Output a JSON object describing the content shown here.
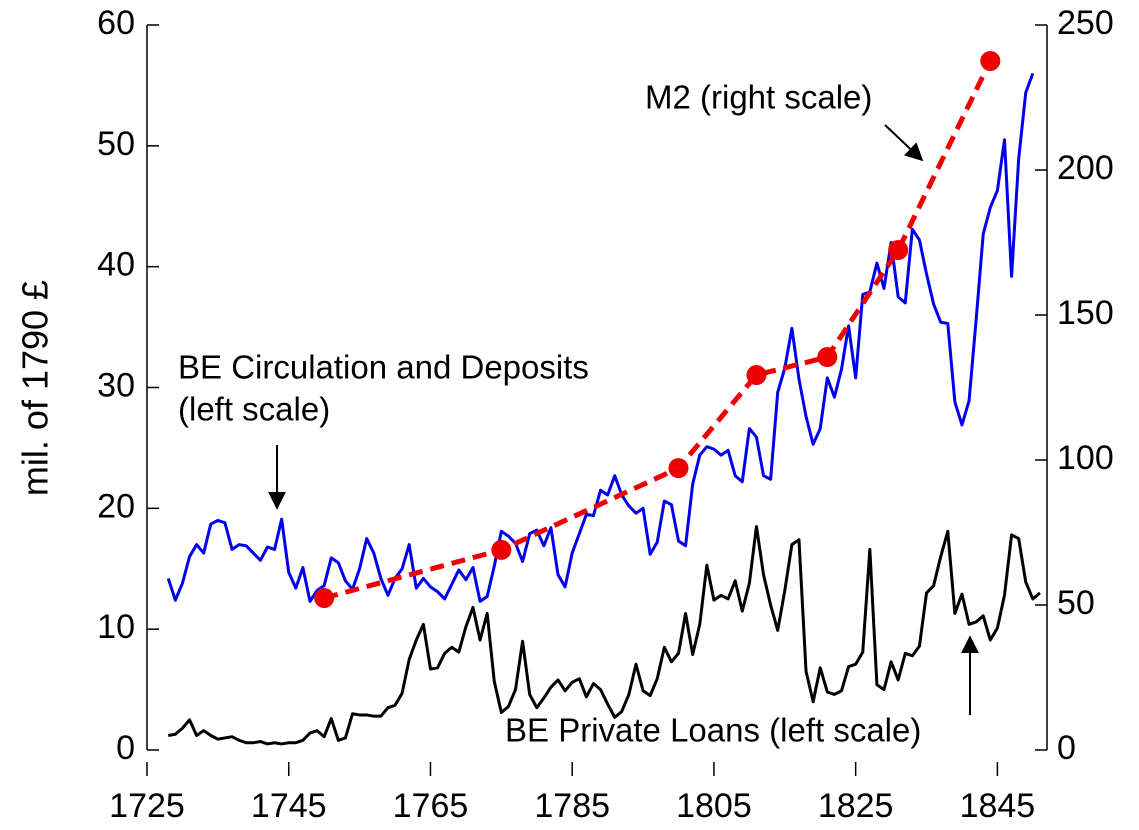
{
  "chart_data": {
    "type": "line",
    "y_axis_label": "mil. of 1790 £",
    "annotations": [
      "M2 (right scale)",
      "BE Circulation and Deposits",
      "(left scale)",
      "BE Private Loans (left scale)"
    ],
    "xlim": [
      1725,
      1852
    ],
    "xticks": [
      1725,
      1745,
      1765,
      1785,
      1805,
      1825,
      1845
    ],
    "ylim": [
      0,
      60
    ],
    "yticks": [
      0,
      10,
      20,
      30,
      40,
      50,
      60
    ],
    "y2lim": [
      0,
      250
    ],
    "y2ticks": [
      0,
      50,
      100,
      150,
      200,
      250
    ],
    "series": [
      {
        "name": "BE Circulation and Deposits",
        "color": "#0000ee",
        "style": "solid",
        "x": [
          1728,
          1729,
          1730,
          1731,
          1732,
          1733,
          1734,
          1735,
          1736,
          1737,
          1738,
          1739,
          1740,
          1741,
          1742,
          1743,
          1744,
          1745,
          1746,
          1747,
          1748,
          1749,
          1750,
          1751,
          1752,
          1753,
          1754,
          1755,
          1756,
          1757,
          1758,
          1759,
          1760,
          1761,
          1762,
          1763,
          1764,
          1765,
          1766,
          1767,
          1768,
          1769,
          1770,
          1771,
          1772,
          1773,
          1774,
          1775,
          1776,
          1777,
          1778,
          1779,
          1780,
          1781,
          1782,
          1783,
          1784,
          1785,
          1786,
          1787,
          1788,
          1789,
          1790,
          1791,
          1792,
          1793,
          1794,
          1795,
          1796,
          1797,
          1798,
          1799,
          1800,
          1801,
          1802,
          1803,
          1804,
          1805,
          1806,
          1807,
          1808,
          1809,
          1810,
          1811,
          1812,
          1813,
          1814,
          1815,
          1816,
          1817,
          1818,
          1819,
          1820,
          1821,
          1822,
          1823,
          1824,
          1825,
          1826,
          1827,
          1828,
          1829,
          1830,
          1831,
          1832,
          1833,
          1834,
          1835,
          1836,
          1837,
          1838,
          1839,
          1840,
          1841,
          1842,
          1843,
          1844,
          1845,
          1846,
          1847,
          1848,
          1849,
          1850
        ],
        "values": [
          14.2,
          12.4,
          13.8,
          16,
          17,
          16.3,
          18.7,
          19,
          18.8,
          16.6,
          17,
          16.9,
          16.3,
          15.7,
          16.8,
          16.6,
          19.1,
          14.7,
          13.4,
          15.1,
          12.3,
          13.2,
          13.6,
          15.9,
          15.5,
          14,
          13.3,
          15,
          17.5,
          16.3,
          14.2,
          12.8,
          14.2,
          15,
          17,
          13.4,
          14.2,
          13.5,
          13.1,
          12.5,
          13.7,
          14.9,
          14.1,
          15.1,
          12.3,
          12.7,
          15.2,
          18.1,
          17.7,
          17.1,
          15.6,
          17.9,
          18.2,
          16.9,
          18.4,
          14.5,
          13.5,
          16.3,
          17.9,
          19.5,
          19.4,
          21.5,
          21.1,
          22.7,
          21.1,
          20.2,
          19.6,
          20,
          16.2,
          17.2,
          20.6,
          20.3,
          17.3,
          16.9,
          22,
          24.4,
          25.1,
          24.9,
          24.4,
          24.8,
          22.7,
          22.2,
          26.6,
          25.9,
          22.7,
          22.4,
          29.6,
          31.6,
          34.9,
          30.7,
          27.6,
          25.3,
          26.6,
          30.8,
          29.2,
          31.5,
          35.1,
          30.8,
          37.7,
          37.9,
          40.3,
          38.2,
          42,
          37.5,
          37,
          43.1,
          42.2,
          39.4,
          36.9,
          35.4,
          35.3,
          28.8,
          26.9,
          28.9,
          35.6,
          42.7,
          44.9,
          46.3,
          50.5,
          39.2,
          48.9,
          54.4,
          56
        ]
      },
      {
        "name": "BE Private Loans",
        "color": "#000000",
        "style": "solid",
        "x": [
          1728,
          1729,
          1730,
          1731,
          1732,
          1733,
          1734,
          1735,
          1736,
          1737,
          1738,
          1739,
          1740,
          1741,
          1742,
          1743,
          1744,
          1745,
          1746,
          1747,
          1748,
          1749,
          1750,
          1751,
          1752,
          1753,
          1754,
          1755,
          1756,
          1757,
          1758,
          1759,
          1760,
          1761,
          1762,
          1763,
          1764,
          1765,
          1766,
          1767,
          1768,
          1769,
          1770,
          1771,
          1772,
          1773,
          1774,
          1775,
          1776,
          1777,
          1778,
          1779,
          1780,
          1781,
          1782,
          1783,
          1784,
          1785,
          1786,
          1787,
          1788,
          1789,
          1790,
          1791,
          1792,
          1793,
          1794,
          1795,
          1796,
          1797,
          1798,
          1799,
          1800,
          1801,
          1802,
          1803,
          1804,
          1805,
          1806,
          1807,
          1808,
          1809,
          1810,
          1811,
          1812,
          1813,
          1814,
          1815,
          1816,
          1817,
          1818,
          1819,
          1820,
          1821,
          1822,
          1823,
          1824,
          1825,
          1826,
          1827,
          1828,
          1829,
          1830,
          1831,
          1832,
          1833,
          1834,
          1835,
          1836,
          1837,
          1838,
          1839,
          1840,
          1841,
          1842,
          1843,
          1844,
          1845,
          1846,
          1847,
          1848,
          1849,
          1850,
          1851
        ],
        "values": [
          1.2,
          1.3,
          1.8,
          2.5,
          1.2,
          1.6,
          1.2,
          0.9,
          1,
          1.1,
          0.8,
          0.6,
          0.6,
          0.7,
          0.5,
          0.6,
          0.5,
          0.6,
          0.6,
          0.8,
          1.4,
          1.6,
          1.1,
          2.6,
          0.8,
          1,
          3,
          2.9,
          2.9,
          2.8,
          2.8,
          3.5,
          3.7,
          4.7,
          7.5,
          9.1,
          10.4,
          6.7,
          6.8,
          8,
          8.5,
          8.1,
          10.2,
          11.8,
          9.1,
          11.3,
          5.7,
          3.1,
          3.6,
          5,
          9,
          4.6,
          3.5,
          4.3,
          5.2,
          5.8,
          4.9,
          5.6,
          5.9,
          4.4,
          5.5,
          5,
          3.8,
          2.7,
          3.2,
          4.6,
          7.1,
          4.9,
          4.5,
          5.9,
          8.5,
          7.3,
          8,
          11.3,
          7.9,
          10.4,
          15.3,
          12.4,
          12.8,
          12.5,
          14,
          11.5,
          13.8,
          18.5,
          14.5,
          12,
          9.9,
          13.2,
          17,
          17.4,
          6.5,
          4,
          6.8,
          4.8,
          4.6,
          4.9,
          6.9,
          7.1,
          8.1,
          16.6,
          5.4,
          5,
          7.3,
          5.8,
          8,
          7.8,
          8.6,
          13,
          13.6,
          16,
          18.1,
          11.3,
          12.9,
          10.4,
          10.6,
          11.1,
          9.1,
          10.1,
          12.8,
          17.8,
          17.5,
          13.9,
          12.5,
          13
        ]
      },
      {
        "name": "M2",
        "color": "#ee0000",
        "style": "dashed",
        "axis": "y2",
        "x": [
          1750,
          1775,
          1800,
          1811,
          1821,
          1831,
          1844
        ],
        "values": [
          52.4,
          69,
          97.2,
          129.3,
          135.5,
          172.4,
          237.6
        ]
      }
    ]
  }
}
